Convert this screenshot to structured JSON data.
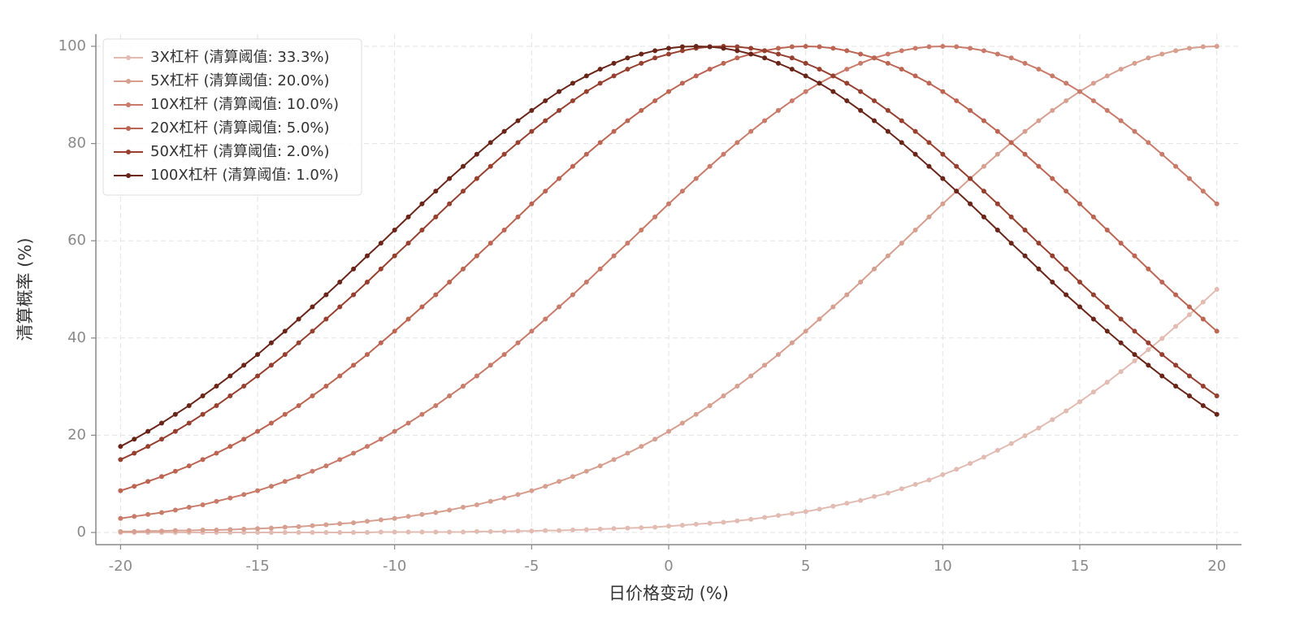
{
  "chart_data": {
    "type": "line",
    "xlabel": "日价格变动 (%)",
    "ylabel": "清算概率 (%)",
    "x": [
      -20,
      -19.5,
      -19,
      -18.5,
      -18,
      -17.5,
      -17,
      -16.5,
      -16,
      -15.5,
      -15,
      -14.5,
      -14,
      -13.5,
      -13,
      -12.5,
      -12,
      -11.5,
      -11,
      -10.5,
      -10,
      -9.5,
      -9,
      -8.5,
      -8,
      -7.5,
      -7,
      -6.5,
      -6,
      -5.5,
      -5,
      -4.5,
      -4,
      -3.5,
      -3,
      -2.5,
      -2,
      -1.5,
      -1,
      -0.5,
      0,
      0.5,
      1,
      1.5,
      2,
      2.5,
      3,
      3.5,
      4,
      4.5,
      5,
      5.5,
      6,
      6.5,
      7,
      7.5,
      8,
      8.5,
      9,
      9.5,
      10,
      10.5,
      11,
      11.5,
      12,
      12.5,
      13,
      13.5,
      14,
      14.5,
      15,
      15.5,
      16,
      16.5,
      17,
      17.5,
      18,
      18.5,
      19,
      19.5,
      20
    ],
    "series": [
      {
        "name": "3X杠杆 (清算阈值: 33.3%)",
        "color": "#e2bcb2",
        "values": [
          0,
          0,
          0,
          0,
          0,
          0,
          0,
          0,
          0,
          0,
          0,
          0,
          0,
          0,
          0,
          0,
          0,
          0,
          0,
          0.1,
          0.1,
          0.1,
          0.1,
          0.1,
          0.1,
          0.1,
          0.2,
          0.2,
          0.2,
          0.3,
          0.3,
          0.4,
          0.4,
          0.5,
          0.6,
          0.7,
          0.8,
          0.9,
          1.0,
          1.1,
          1.3,
          1.5,
          1.7,
          1.9,
          2.1,
          2.4,
          2.7,
          3.1,
          3.5,
          3.9,
          4.3,
          4.8,
          5.4,
          6.0,
          6.6,
          7.4,
          8.1,
          9.0,
          9.9,
          10.8,
          11.9,
          13.0,
          14.2,
          15.5,
          16.9,
          18.3,
          19.9,
          21.5,
          23.2,
          25.0,
          26.9,
          28.9,
          30.9,
          33.1,
          35.3,
          37.6,
          39.9,
          42.4,
          44.8,
          47.4,
          50.0
        ]
      },
      {
        "name": "5X杠杆 (清算阈值: 20.0%)",
        "color": "#d69f90",
        "values": [
          0.2,
          0.2,
          0.3,
          0.3,
          0.4,
          0.4,
          0.5,
          0.5,
          0.6,
          0.7,
          0.8,
          0.9,
          1.1,
          1.2,
          1.4,
          1.6,
          1.8,
          2.0,
          2.3,
          2.6,
          2.9,
          3.3,
          3.7,
          4.1,
          4.6,
          5.2,
          5.7,
          6.4,
          7.1,
          7.8,
          8.6,
          9.5,
          10.5,
          11.5,
          12.6,
          13.7,
          15.0,
          16.3,
          17.7,
          19.2,
          20.8,
          22.5,
          24.3,
          26.1,
          28.1,
          30.1,
          32.2,
          34.4,
          36.6,
          39.0,
          41.4,
          43.9,
          46.4,
          48.9,
          51.5,
          54.2,
          56.9,
          59.5,
          62.2,
          64.9,
          67.6,
          70.2,
          72.8,
          75.3,
          77.8,
          80.2,
          82.5,
          84.7,
          86.8,
          88.8,
          90.7,
          92.4,
          93.9,
          95.3,
          96.5,
          97.6,
          98.4,
          99.1,
          99.6,
          99.9,
          100
        ]
      },
      {
        "name": "10X杠杆 (清算阈值: 10.0%)",
        "color": "#c97b6a",
        "values": [
          2.9,
          3.3,
          3.7,
          4.1,
          4.6,
          5.2,
          5.7,
          6.4,
          7.1,
          7.8,
          8.6,
          9.5,
          10.5,
          11.5,
          12.6,
          13.7,
          15.0,
          16.3,
          17.7,
          19.2,
          20.8,
          22.5,
          24.3,
          26.1,
          28.1,
          30.1,
          32.2,
          34.4,
          36.6,
          39.0,
          41.4,
          43.9,
          46.4,
          48.9,
          51.5,
          54.2,
          56.9,
          59.5,
          62.2,
          64.9,
          67.6,
          70.2,
          72.8,
          75.3,
          77.8,
          80.2,
          82.5,
          84.7,
          86.8,
          88.8,
          90.7,
          92.4,
          93.9,
          95.3,
          96.5,
          97.6,
          98.4,
          99.1,
          99.6,
          99.9,
          100,
          99.9,
          99.6,
          99.1,
          98.4,
          97.6,
          96.5,
          95.3,
          93.9,
          92.4,
          90.7,
          88.8,
          86.8,
          84.7,
          82.5,
          80.2,
          77.8,
          75.3,
          72.8,
          70.2,
          67.6
        ]
      },
      {
        "name": "20X杠杆 (清算阈值: 5.0%)",
        "color": "#bd6553",
        "values": [
          8.6,
          9.5,
          10.5,
          11.5,
          12.6,
          13.7,
          15.0,
          16.3,
          17.7,
          19.2,
          20.8,
          22.5,
          24.3,
          26.1,
          28.1,
          30.1,
          32.2,
          34.4,
          36.6,
          39.0,
          41.4,
          43.9,
          46.4,
          48.9,
          51.5,
          54.2,
          56.9,
          59.5,
          62.2,
          64.9,
          67.6,
          70.2,
          72.8,
          75.3,
          77.8,
          80.2,
          82.5,
          84.7,
          86.8,
          88.8,
          90.7,
          92.4,
          93.9,
          95.3,
          96.5,
          97.6,
          98.4,
          99.1,
          99.6,
          99.9,
          100,
          99.9,
          99.6,
          99.1,
          98.4,
          97.6,
          96.5,
          95.3,
          93.9,
          92.4,
          90.7,
          88.8,
          86.8,
          84.7,
          82.5,
          80.2,
          77.8,
          75.3,
          72.8,
          70.2,
          67.6,
          64.9,
          62.2,
          59.5,
          56.9,
          54.2,
          51.5,
          48.9,
          46.4,
          43.9,
          41.4
        ]
      },
      {
        "name": "50X杠杆 (清算阈值: 2.0%)",
        "color": "#97402f",
        "values": [
          15.0,
          16.3,
          17.7,
          19.2,
          20.8,
          22.5,
          24.3,
          26.1,
          28.1,
          30.1,
          32.2,
          34.4,
          36.6,
          39.0,
          41.4,
          43.9,
          46.4,
          48.9,
          51.5,
          54.2,
          56.9,
          59.5,
          62.2,
          64.9,
          67.6,
          70.2,
          72.8,
          75.3,
          77.8,
          80.2,
          82.5,
          84.7,
          86.8,
          88.8,
          90.7,
          92.4,
          93.9,
          95.3,
          96.5,
          97.6,
          98.4,
          99.1,
          99.6,
          99.9,
          100,
          99.9,
          99.6,
          99.1,
          98.4,
          97.6,
          96.5,
          95.3,
          93.9,
          92.4,
          90.7,
          88.8,
          86.8,
          84.7,
          82.5,
          80.2,
          77.8,
          75.3,
          72.8,
          70.2,
          67.6,
          64.9,
          62.2,
          59.5,
          56.9,
          54.2,
          51.5,
          48.9,
          46.4,
          43.9,
          41.4,
          39.0,
          36.6,
          34.4,
          32.2,
          30.1,
          28.1
        ]
      },
      {
        "name": "100X杠杆 (清算阈值: 1.0%)",
        "color": "#6a2519",
        "values": [
          17.7,
          19.2,
          20.8,
          22.5,
          24.3,
          26.1,
          28.1,
          30.1,
          32.2,
          34.4,
          36.6,
          39.0,
          41.4,
          43.9,
          46.4,
          48.9,
          51.5,
          54.2,
          56.9,
          59.5,
          62.2,
          64.9,
          67.6,
          70.2,
          72.8,
          75.3,
          77.8,
          80.2,
          82.5,
          84.7,
          86.8,
          88.8,
          90.7,
          92.4,
          93.9,
          95.3,
          96.5,
          97.6,
          98.4,
          99.1,
          99.6,
          99.9,
          100,
          99.9,
          99.6,
          99.1,
          98.4,
          97.6,
          96.5,
          95.3,
          93.9,
          92.4,
          90.7,
          88.8,
          86.8,
          84.7,
          82.5,
          80.2,
          77.8,
          75.3,
          72.8,
          70.2,
          67.6,
          64.9,
          62.2,
          59.5,
          56.9,
          54.2,
          51.5,
          48.9,
          46.4,
          43.9,
          41.4,
          39.0,
          36.6,
          34.4,
          32.2,
          30.1,
          28.1,
          26.1,
          24.3
        ]
      }
    ],
    "xlim": [
      -20.9,
      20.9
    ],
    "xticks": [
      -20,
      -15,
      -10,
      -5,
      0,
      5,
      10,
      15,
      20
    ],
    "ylim": [
      -2.5,
      102.5
    ],
    "yticks": [
      0,
      20,
      40,
      60,
      80,
      100
    ],
    "grid": true,
    "legend": "upper left"
  }
}
